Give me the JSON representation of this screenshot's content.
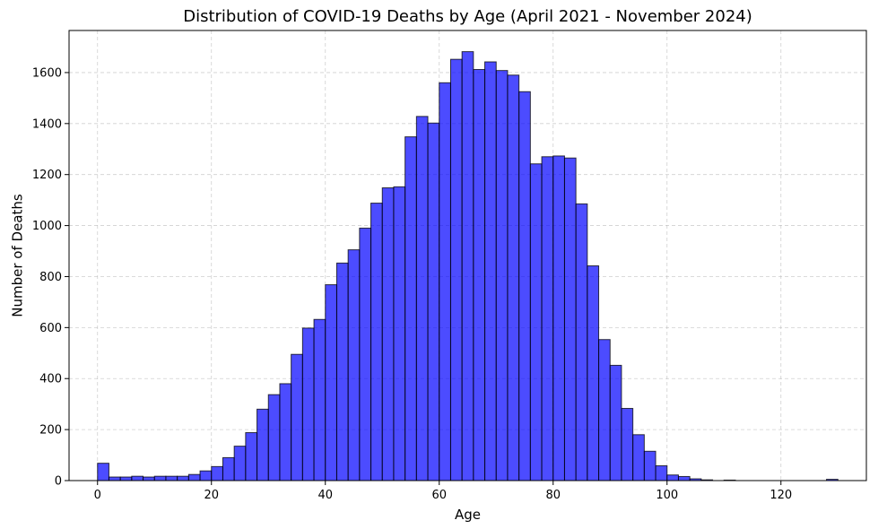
{
  "chart_data": {
    "type": "bar",
    "title": "Distribution of COVID-19 Deaths by Age (April 2021 - November 2024)",
    "xlabel": "Age",
    "ylabel": "Number of Deaths",
    "xlim": [
      -5,
      135
    ],
    "ylim": [
      0,
      1765
    ],
    "xticks": [
      0,
      20,
      40,
      60,
      80,
      100,
      120
    ],
    "yticks": [
      0,
      200,
      400,
      600,
      800,
      1000,
      1200,
      1400,
      1600
    ],
    "grid": true,
    "bar_color": "#0000ff",
    "bar_edge_color": "#000000",
    "bar_alpha": 0.7,
    "bin_width": 2,
    "x": [
      0,
      2,
      4,
      6,
      8,
      10,
      12,
      14,
      16,
      18,
      20,
      22,
      24,
      26,
      28,
      30,
      32,
      34,
      36,
      38,
      40,
      42,
      44,
      46,
      48,
      50,
      52,
      54,
      56,
      58,
      60,
      62,
      64,
      66,
      68,
      70,
      72,
      74,
      76,
      78,
      80,
      82,
      84,
      86,
      88,
      90,
      92,
      94,
      96,
      98,
      100,
      102,
      104,
      106,
      108,
      110,
      112,
      114,
      116,
      118,
      120,
      122,
      124,
      126,
      128
    ],
    "values": [
      68,
      14,
      14,
      17,
      14,
      17,
      17,
      17,
      24,
      38,
      55,
      90,
      135,
      188,
      280,
      337,
      380,
      495,
      598,
      632,
      768,
      853,
      905,
      990,
      1088,
      1148,
      1152,
      1348,
      1428,
      1402,
      1560,
      1652,
      1682,
      1612,
      1642,
      1608,
      1590,
      1525,
      1242,
      1270,
      1273,
      1265,
      1085,
      842,
      553,
      452,
      283,
      180,
      115,
      58,
      22,
      16,
      7,
      3,
      0,
      2,
      0,
      0,
      0,
      0,
      0,
      0,
      0,
      0,
      5
    ]
  }
}
